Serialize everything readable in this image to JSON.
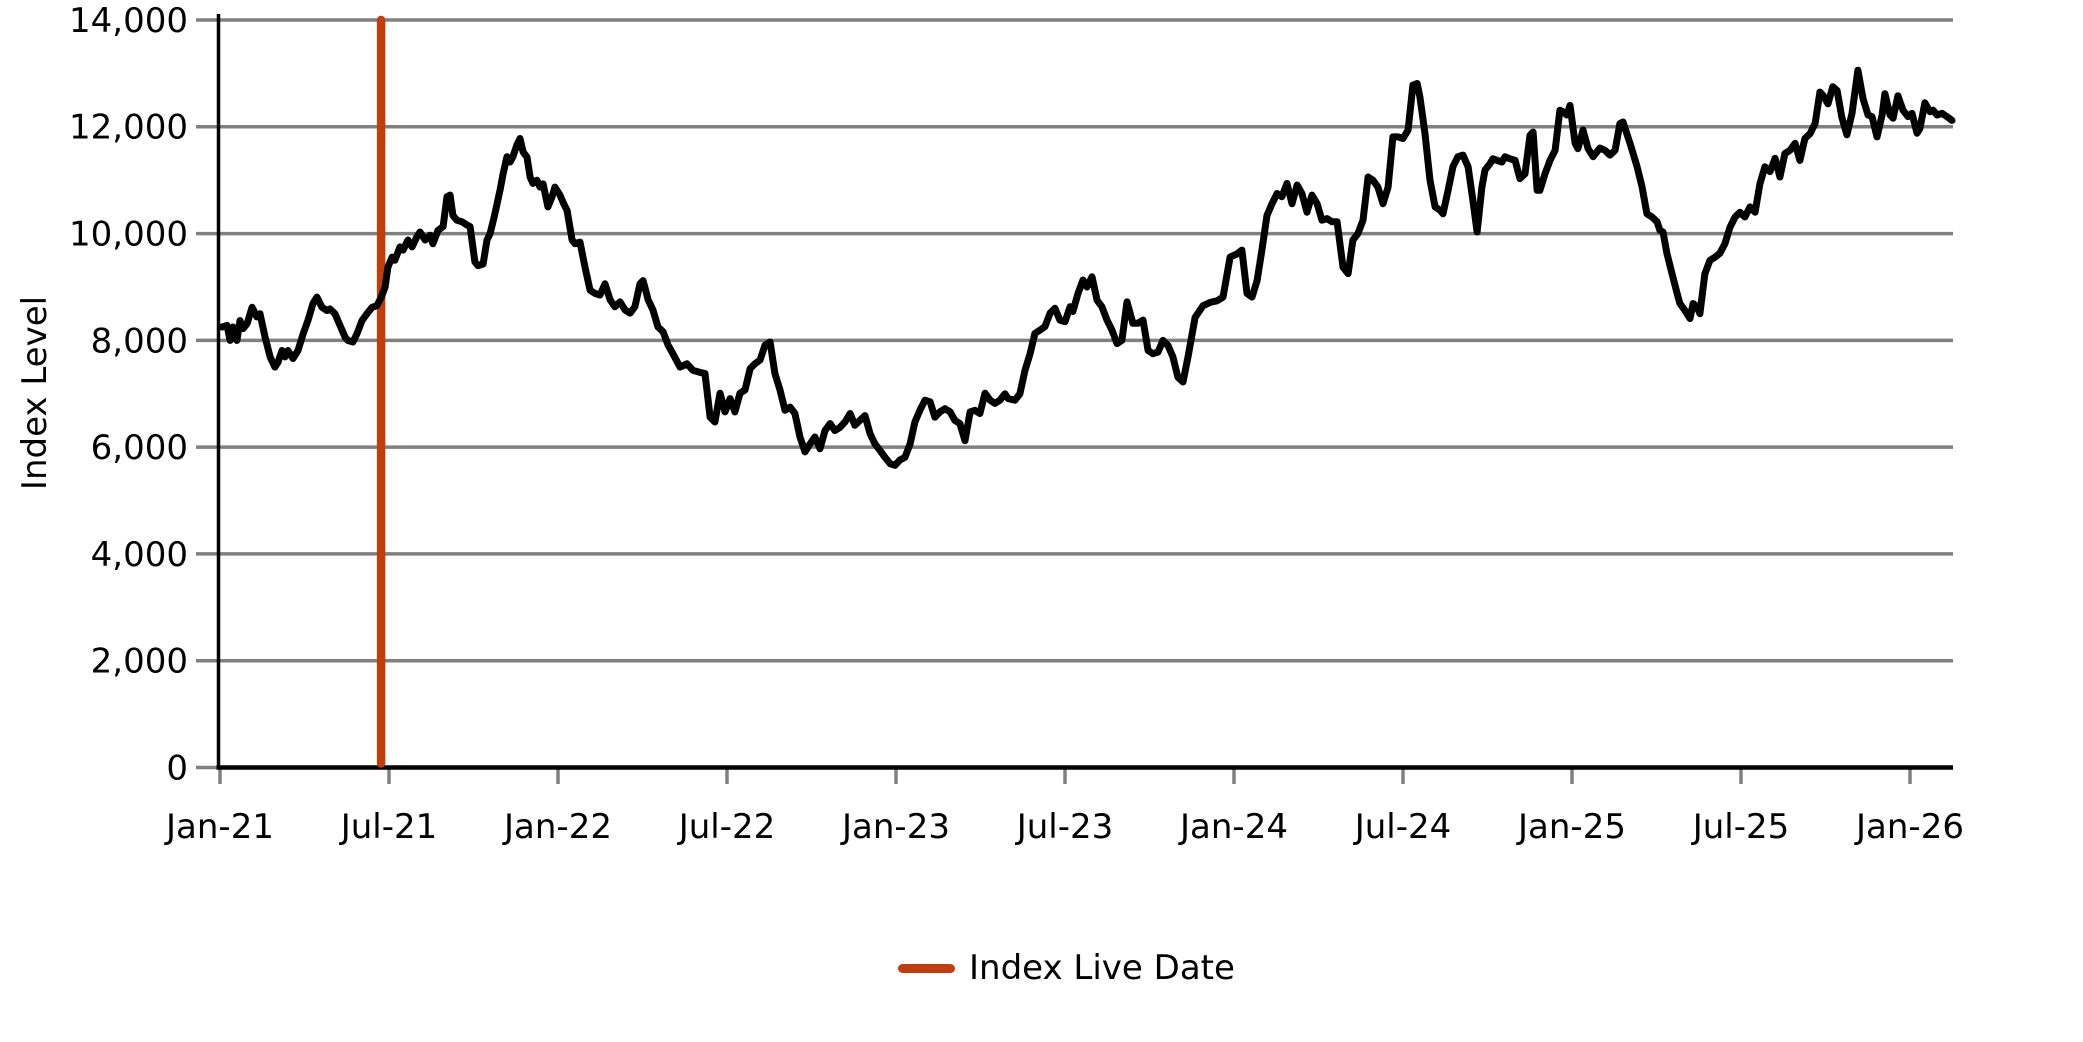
{
  "legend": {
    "label": "Index Live Date"
  },
  "axes": {
    "ylabel": "Index Level"
  },
  "colors": {
    "series": "#000000",
    "event_line": "#C33D0B",
    "grid": "#808080",
    "tick": "#808080",
    "spine": "#000000",
    "background": "#ffffff"
  },
  "chart_data": {
    "type": "line",
    "title": "",
    "xlabel": "",
    "ylabel": "Index Level",
    "ylim": [
      0,
      14000
    ],
    "xlim_months": [
      0,
      61.5
    ],
    "x_unit": "months since Jan-2021",
    "grid": "horizontal",
    "legend_position": "bottom-center",
    "x_tick_months": [
      0,
      6,
      12,
      18,
      24,
      30,
      36,
      42,
      48,
      54,
      60
    ],
    "x_tick_labels": [
      "Jan-21",
      "Jul-21",
      "Jan-22",
      "Jul-22",
      "Jan-23",
      "Jul-23",
      "Jan-24",
      "Jul-24",
      "Jan-25",
      "Jul-25",
      "Jan-26"
    ],
    "y_tick_values": [
      0,
      2000,
      4000,
      6000,
      8000,
      10000,
      12000,
      14000
    ],
    "y_tick_labels": [
      "0",
      "2,000",
      "4,000",
      "6,000",
      "8,000",
      "10,000",
      "12,000",
      "14,000"
    ],
    "annotations": [
      {
        "type": "vline",
        "label": "Index Live Date",
        "x_month": 5.72,
        "color": "#C33D0B"
      }
    ],
    "series": [
      {
        "name": "Index Level",
        "color": "#000000",
        "x_months": [
          0.07,
          0.25,
          0.36,
          0.46,
          0.6,
          0.71,
          0.82,
          0.96,
          1.14,
          1.31,
          1.42,
          1.6,
          1.78,
          1.95,
          2.06,
          2.2,
          2.31,
          2.41,
          2.59,
          2.77,
          2.95,
          3.12,
          3.3,
          3.44,
          3.62,
          3.8,
          3.9,
          4.08,
          4.26,
          4.44,
          4.54,
          4.72,
          4.86,
          5.04,
          5.22,
          5.4,
          5.57,
          5.72,
          5.86,
          5.96,
          6.11,
          6.21,
          6.39,
          6.5,
          6.67,
          6.82,
          6.99,
          7.1,
          7.28,
          7.46,
          7.56,
          7.74,
          7.92,
          8.06,
          8.17,
          8.27,
          8.41,
          8.59,
          8.77,
          8.88,
          9.05,
          9.16,
          9.34,
          9.48,
          9.59,
          9.76,
          9.94,
          10.05,
          10.19,
          10.3,
          10.4,
          10.54,
          10.65,
          10.76,
          10.9,
          11.01,
          11.11,
          11.25,
          11.36,
          11.47,
          11.64,
          11.79,
          11.89,
          12.07,
          12.21,
          12.32,
          12.5,
          12.6,
          12.78,
          12.96,
          13.14,
          13.31,
          13.49,
          13.67,
          13.85,
          14.02,
          14.2,
          14.38,
          14.56,
          14.73,
          14.91,
          15.02,
          15.2,
          15.37,
          15.55,
          15.73,
          15.91,
          16.08,
          16.33,
          16.58,
          16.79,
          17.04,
          17.22,
          17.4,
          17.57,
          17.75,
          17.93,
          18.11,
          18.28,
          18.46,
          18.64,
          18.82,
          18.99,
          19.17,
          19.35,
          19.53,
          19.7,
          19.88,
          20.06,
          20.24,
          20.41,
          20.59,
          20.77,
          20.95,
          21.12,
          21.3,
          21.48,
          21.66,
          21.83,
          22.01,
          22.19,
          22.37,
          22.54,
          22.72,
          22.9,
          23.08,
          23.25,
          23.43,
          23.61,
          23.79,
          23.96,
          24.14,
          24.32,
          24.5,
          24.67,
          24.85,
          25.03,
          25.21,
          25.38,
          25.56,
          25.74,
          25.92,
          26.09,
          26.27,
          26.45,
          26.63,
          26.8,
          26.98,
          27.16,
          27.34,
          27.51,
          27.69,
          27.87,
          27.98,
          28.22,
          28.4,
          28.58,
          28.76,
          28.93,
          29.11,
          29.29,
          29.47,
          29.64,
          29.82,
          30.0,
          30.18,
          30.28,
          30.46,
          30.64,
          30.78,
          30.96,
          31.14,
          31.31,
          31.49,
          31.67,
          31.85,
          32.02,
          32.2,
          32.41,
          32.59,
          32.77,
          32.95,
          33.12,
          33.3,
          33.48,
          33.66,
          33.83,
          34.01,
          34.19,
          34.37,
          34.62,
          34.9,
          35.15,
          35.4,
          35.61,
          35.86,
          36.11,
          36.28,
          36.46,
          36.64,
          36.82,
          36.99,
          37.17,
          37.35,
          37.53,
          37.7,
          37.88,
          38.06,
          38.24,
          38.41,
          38.59,
          38.77,
          38.95,
          39.12,
          39.3,
          39.48,
          39.66,
          39.87,
          40.05,
          40.22,
          40.4,
          40.58,
          40.76,
          40.93,
          41.11,
          41.29,
          41.47,
          41.64,
          41.82,
          42.0,
          42.18,
          42.35,
          42.5,
          42.6,
          42.78,
          42.96,
          43.14,
          43.31,
          43.42,
          43.6,
          43.77,
          43.95,
          44.13,
          44.31,
          44.48,
          44.63,
          44.8,
          44.91,
          45.09,
          45.19,
          45.34,
          45.51,
          45.62,
          45.8,
          45.98,
          46.15,
          46.33,
          46.51,
          46.62,
          46.76,
          46.86,
          47.04,
          47.22,
          47.4,
          47.57,
          47.68,
          47.82,
          47.93,
          48.11,
          48.21,
          48.39,
          48.57,
          48.75,
          48.99,
          49.17,
          49.35,
          49.53,
          49.7,
          49.81,
          50.06,
          50.17,
          50.31,
          50.49,
          50.66,
          50.84,
          51.02,
          51.12,
          51.23,
          51.37,
          51.55,
          51.73,
          51.83,
          52.01,
          52.19,
          52.3,
          52.44,
          52.54,
          52.72,
          52.9,
          53.08,
          53.25,
          53.43,
          53.61,
          53.79,
          53.96,
          54.14,
          54.32,
          54.5,
          54.67,
          54.85,
          55.03,
          55.21,
          55.38,
          55.56,
          55.74,
          55.92,
          56.09,
          56.27,
          56.45,
          56.63,
          56.8,
          56.91,
          57.09,
          57.26,
          57.41,
          57.58,
          57.76,
          57.94,
          58.15,
          58.33,
          58.51,
          58.65,
          58.83,
          59.01,
          59.11,
          59.29,
          59.4,
          59.57,
          59.75,
          59.93,
          60.07,
          60.25,
          60.35,
          60.53,
          60.71,
          60.82,
          60.96,
          61.14,
          61.31,
          61.49
        ],
        "values": [
          8250,
          8280,
          8000,
          8250,
          8000,
          8370,
          8220,
          8310,
          8620,
          8440,
          8500,
          8060,
          7690,
          7500,
          7590,
          7810,
          7690,
          7810,
          7660,
          7810,
          8120,
          8370,
          8690,
          8810,
          8620,
          8560,
          8590,
          8500,
          8280,
          8060,
          8000,
          7970,
          8120,
          8370,
          8500,
          8620,
          8650,
          8800,
          9000,
          9370,
          9560,
          9500,
          9750,
          9690,
          9880,
          9750,
          9940,
          10030,
          9880,
          9970,
          9810,
          10060,
          10130,
          10690,
          10720,
          10340,
          10250,
          10220,
          10160,
          10130,
          9470,
          9400,
          9430,
          9880,
          10000,
          10370,
          10810,
          11120,
          11440,
          11340,
          11440,
          11660,
          11780,
          11530,
          11430,
          11060,
          10940,
          11000,
          10870,
          10930,
          10500,
          10690,
          10870,
          10720,
          10550,
          10440,
          9880,
          9810,
          9840,
          9370,
          8940,
          8880,
          8850,
          9060,
          8760,
          8630,
          8720,
          8570,
          8510,
          8630,
          9060,
          9120,
          8760,
          8570,
          8250,
          8160,
          7910,
          7750,
          7500,
          7560,
          7440,
          7400,
          7380,
          6560,
          6470,
          7010,
          6660,
          6910,
          6660,
          7010,
          7070,
          7470,
          7560,
          7630,
          7910,
          7970,
          7380,
          7070,
          6690,
          6750,
          6630,
          6190,
          5910,
          6060,
          6190,
          5970,
          6310,
          6440,
          6310,
          6370,
          6470,
          6630,
          6410,
          6500,
          6590,
          6250,
          6060,
          5940,
          5810,
          5690,
          5660,
          5760,
          5810,
          6060,
          6470,
          6690,
          6880,
          6850,
          6560,
          6660,
          6720,
          6660,
          6500,
          6440,
          6120,
          6660,
          6690,
          6630,
          7010,
          6880,
          6820,
          6880,
          7000,
          6910,
          6880,
          7000,
          7440,
          7750,
          8130,
          8190,
          8260,
          8510,
          8600,
          8380,
          8350,
          8630,
          8540,
          8880,
          9130,
          9000,
          9190,
          8750,
          8630,
          8380,
          8190,
          7940,
          8000,
          8720,
          8320,
          8320,
          8380,
          7810,
          7750,
          7780,
          8000,
          7900,
          7690,
          7310,
          7220,
          7700,
          8430,
          8650,
          8710,
          8740,
          8810,
          9560,
          9620,
          9690,
          8880,
          8810,
          9120,
          9690,
          10340,
          10560,
          10750,
          10690,
          10940,
          10560,
          10910,
          10750,
          10400,
          10720,
          10560,
          10250,
          10280,
          10220,
          10220,
          9370,
          9250,
          9880,
          10000,
          10250,
          11060,
          11000,
          10870,
          10560,
          10870,
          11810,
          11810,
          11780,
          11940,
          12780,
          12810,
          12560,
          11870,
          11000,
          10500,
          10440,
          10370,
          10810,
          11250,
          11440,
          11470,
          11250,
          10620,
          10030,
          10870,
          11190,
          11310,
          11400,
          11370,
          11340,
          11440,
          11400,
          11370,
          11030,
          11120,
          11840,
          11900,
          10810,
          10810,
          11120,
          11370,
          11560,
          12310,
          12280,
          12220,
          12400,
          11690,
          11590,
          11940,
          11590,
          11440,
          11600,
          11560,
          11470,
          11560,
          12060,
          12090,
          11690,
          11500,
          11250,
          10870,
          10370,
          10310,
          10220,
          10060,
          10030,
          9630,
          9250,
          8880,
          8690,
          8560,
          8410,
          8690,
          8630,
          8500,
          9250,
          9500,
          9560,
          9630,
          9810,
          10120,
          10310,
          10400,
          10310,
          10500,
          10400,
          10930,
          11250,
          11160,
          11410,
          11060,
          11500,
          11560,
          11690,
          11370,
          11780,
          11870,
          12060,
          12650,
          12590,
          12430,
          12750,
          12680,
          12180,
          11850,
          12250,
          13060,
          12530,
          12220,
          12190,
          11810,
          12220,
          12620,
          12220,
          12160,
          12580,
          12310,
          12190,
          12250,
          11880,
          11970,
          12450,
          12280,
          12310,
          12220,
          12250,
          12190,
          12120
        ]
      }
    ]
  }
}
